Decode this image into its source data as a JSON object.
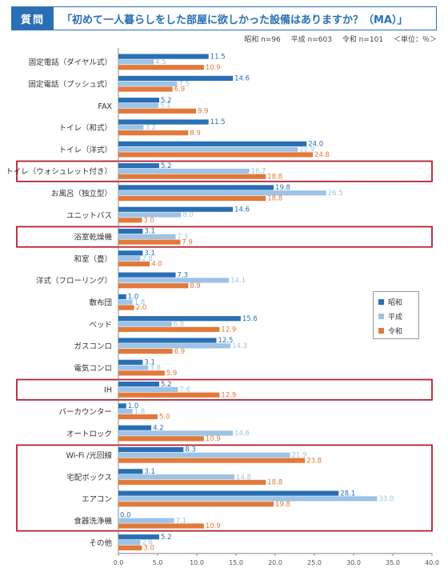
{
  "header": {
    "badge": "質問",
    "question": "「初めて一人暮らしをした部屋に欲しかった設備はありますか？（MA）」"
  },
  "meta": {
    "showa": "昭和 n=96",
    "heisei": "平成 n=603",
    "reiwa": "令和 n=101",
    "unit": "＜単位：％＞"
  },
  "colors": {
    "showa": "#2a6fb5",
    "heisei": "#9dc3e6",
    "reiwa": "#e2793a",
    "highlight": "#b22030"
  },
  "chart_data": {
    "type": "bar",
    "orientation": "horizontal",
    "categories": [
      "固定電話（ダイヤル式）",
      "固定電話（プッシュ式）",
      "FAX",
      "トイレ（和式）",
      "トイレ（洋式）",
      "トイレ（ウォシュレット付き）",
      "お風呂（独立型）",
      "ユニットバス",
      "浴室乾燥機",
      "和室（畳）",
      "洋式（フローリング）",
      "敷布団",
      "ベッド",
      "ガスコンロ",
      "電気コンロ",
      "IH",
      "バーカウンター",
      "オートロック",
      "Wi-Fi /光回線",
      "宅配ボックス",
      "エアコン",
      "食器洗浄機",
      "その他"
    ],
    "series": [
      {
        "name": "昭和",
        "values": [
          11.5,
          14.6,
          5.2,
          11.5,
          24.0,
          5.2,
          19.8,
          14.6,
          3.1,
          3.1,
          7.3,
          1.0,
          15.6,
          12.5,
          3.1,
          5.2,
          1.0,
          4.2,
          8.3,
          3.1,
          28.1,
          0.0,
          5.2
        ]
      },
      {
        "name": "平成",
        "values": [
          4.5,
          7.5,
          5.1,
          3.2,
          22.9,
          16.7,
          26.5,
          8.0,
          7.3,
          2.8,
          14.1,
          1.8,
          6.8,
          14.3,
          3.8,
          7.6,
          1.8,
          14.6,
          21.9,
          14.8,
          33.0,
          7.1,
          2.8
        ]
      },
      {
        "name": "令和",
        "values": [
          10.9,
          6.9,
          9.9,
          8.9,
          24.8,
          18.8,
          18.8,
          3.0,
          7.9,
          4.0,
          8.9,
          2.0,
          12.9,
          6.9,
          5.9,
          12.9,
          5.0,
          10.9,
          23.8,
          18.8,
          19.8,
          10.9,
          3.0
        ]
      }
    ],
    "xlim": [
      0,
      40
    ],
    "xticks": [
      "0.0",
      "5.0",
      "10.0",
      "15.0",
      "20.0",
      "25.0",
      "30.0",
      "35.0",
      "40.0"
    ],
    "legend": "right",
    "grid": false,
    "highlighted_groups": [
      [
        5
      ],
      [
        8
      ],
      [
        15
      ],
      [
        18,
        19,
        20,
        21
      ]
    ]
  }
}
